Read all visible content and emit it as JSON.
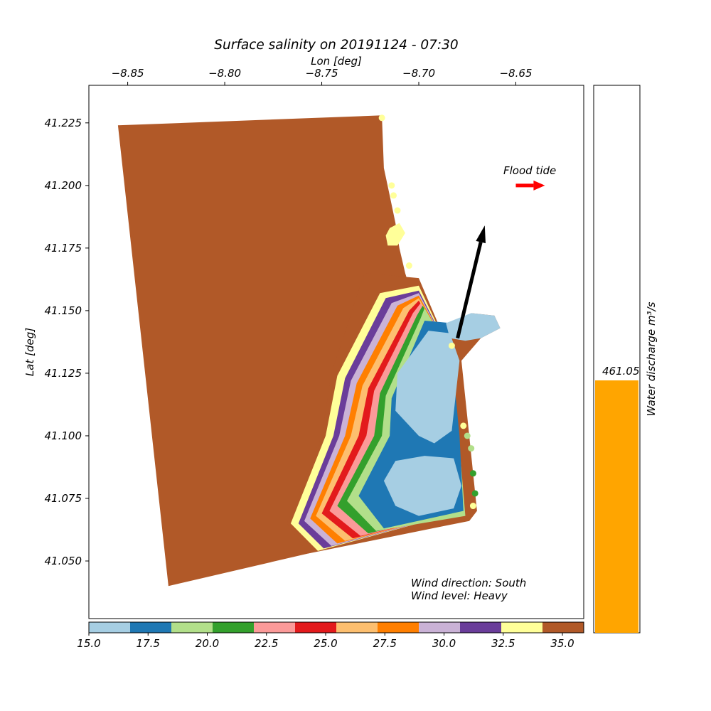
{
  "chart_data": [
    {
      "type": "scatter",
      "title": "Surface salinity on 20191124 - 07:30",
      "xlabel": "Lon [deg]",
      "ylabel": "Lat [deg]",
      "xlim": [
        -8.87,
        -8.615
      ],
      "ylim": [
        41.027,
        41.24
      ],
      "x_axis_position": "top",
      "x_ticks": [
        -8.85,
        -8.8,
        -8.75,
        -8.7,
        -8.65
      ],
      "x_tick_labels": [
        "−8.85",
        "−8.80",
        "−8.75",
        "−8.70",
        "−8.65"
      ],
      "y_ticks": [
        41.225,
        41.2,
        41.175,
        41.15,
        41.125,
        41.1,
        41.075,
        41.05
      ],
      "y_tick_labels": [
        "41.225",
        "41.200",
        "41.175",
        "41.150",
        "41.125",
        "41.100",
        "41.075",
        "41.050"
      ],
      "grid": false,
      "annotations": {
        "flood_tide_label": "Flood tide",
        "wind_direction": "Wind direction: South",
        "wind_level": "Wind level: Heavy"
      },
      "colorbar": {
        "range": [
          15.0,
          35.9
        ],
        "tick_values": [
          15.0,
          17.5,
          20.0,
          22.5,
          25.0,
          27.5,
          30.0,
          32.5,
          35.0
        ],
        "tick_labels": [
          "15.0",
          "17.5",
          "20.0",
          "22.5",
          "25.0",
          "27.5",
          "30.0",
          "32.5",
          "35.0"
        ],
        "colors": [
          "#a6cee3",
          "#1f78b4",
          "#b2df8a",
          "#33a02c",
          "#fb9a99",
          "#e31a1c",
          "#fdbf6f",
          "#ff7f00",
          "#cab2d6",
          "#6a3d9a",
          "#ffff99",
          "#b15928"
        ]
      },
      "field": {
        "domain_outline": [
          [
            -8.855,
            41.224
          ],
          [
            -8.719,
            41.228
          ],
          [
            -8.718,
            41.207
          ],
          [
            -8.715,
            41.196
          ],
          [
            -8.712,
            41.185
          ],
          [
            -8.71,
            41.175
          ],
          [
            -8.707,
            41.165
          ],
          [
            -8.703,
            41.155
          ],
          [
            -8.698,
            41.148
          ],
          [
            -8.695,
            41.142
          ],
          [
            -8.684,
            41.141
          ],
          [
            -8.673,
            41.149
          ],
          [
            -8.661,
            41.148
          ],
          [
            -8.658,
            41.143
          ],
          [
            -8.668,
            41.139
          ],
          [
            -8.678,
            41.13
          ],
          [
            -8.676,
            41.115
          ],
          [
            -8.674,
            41.1
          ],
          [
            -8.672,
            41.085
          ],
          [
            -8.67,
            41.07
          ],
          [
            -8.674,
            41.066
          ],
          [
            -8.757,
            41.053
          ],
          [
            -8.829,
            41.04
          ]
        ],
        "plume_bands": [
          {
            "value": 35.5,
            "color": "#b15928",
            "outline": [
              [
                -8.728,
                41.165
              ],
              [
                -8.7,
                41.163
              ],
              [
                -8.683,
                41.132
              ],
              [
                -8.677,
                41.07
              ],
              [
                -8.757,
                41.053
              ],
              [
                -8.768,
                41.065
              ],
              [
                -8.75,
                41.1
              ],
              [
                -8.745,
                41.125
              ],
              [
                -8.728,
                41.165
              ]
            ]
          },
          {
            "value": 33.5,
            "color": "#ffff99",
            "outline": [
              [
                -8.72,
                41.157
              ],
              [
                -8.7,
                41.16
              ],
              [
                -8.683,
                41.132
              ],
              [
                -8.677,
                41.07
              ],
              [
                -8.752,
                41.054
              ],
              [
                -8.766,
                41.065
              ],
              [
                -8.748,
                41.1
              ],
              [
                -8.742,
                41.124
              ],
              [
                -8.72,
                41.157
              ]
            ]
          },
          {
            "value": 31.7,
            "color": "#6a3d9a",
            "outline": [
              [
                -8.717,
                41.155
              ],
              [
                -8.7,
                41.158
              ],
              [
                -8.683,
                41.132
              ],
              [
                -8.677,
                41.07
              ],
              [
                -8.749,
                41.055
              ],
              [
                -8.762,
                41.065
              ],
              [
                -8.744,
                41.1
              ],
              [
                -8.738,
                41.123
              ],
              [
                -8.717,
                41.155
              ]
            ]
          },
          {
            "value": 29.9,
            "color": "#cab2d6",
            "outline": [
              [
                -8.714,
                41.153
              ],
              [
                -8.7,
                41.157
              ],
              [
                -8.683,
                41.132
              ],
              [
                -8.677,
                41.07
              ],
              [
                -8.745,
                41.056
              ],
              [
                -8.759,
                41.066
              ],
              [
                -8.741,
                41.1
              ],
              [
                -8.735,
                41.122
              ],
              [
                -8.714,
                41.153
              ]
            ]
          },
          {
            "value": 28.2,
            "color": "#ff7f00",
            "outline": [
              [
                -8.711,
                41.152
              ],
              [
                -8.7,
                41.156
              ],
              [
                -8.683,
                41.132
              ],
              [
                -8.677,
                41.07
              ],
              [
                -8.742,
                41.057
              ],
              [
                -8.756,
                41.067
              ],
              [
                -8.738,
                41.1
              ],
              [
                -8.732,
                41.121
              ],
              [
                -8.711,
                41.152
              ]
            ]
          },
          {
            "value": 26.4,
            "color": "#fdbf6f",
            "outline": [
              [
                -8.708,
                41.151
              ],
              [
                -8.7,
                41.155
              ],
              [
                -8.683,
                41.132
              ],
              [
                -8.677,
                41.07
              ],
              [
                -8.738,
                41.058
              ],
              [
                -8.753,
                41.068
              ],
              [
                -8.735,
                41.1
              ],
              [
                -8.729,
                41.12
              ],
              [
                -8.708,
                41.151
              ]
            ]
          },
          {
            "value": 24.6,
            "color": "#e31a1c",
            "outline": [
              [
                -8.705,
                41.15
              ],
              [
                -8.7,
                41.154
              ],
              [
                -8.683,
                41.132
              ],
              [
                -8.677,
                41.07
              ],
              [
                -8.734,
                41.059
              ],
              [
                -8.75,
                41.069
              ],
              [
                -8.731,
                41.1
              ],
              [
                -8.726,
                41.119
              ],
              [
                -8.705,
                41.15
              ]
            ]
          },
          {
            "value": 22.9,
            "color": "#fb9a99",
            "outline": [
              [
                -8.703,
                41.149
              ],
              [
                -8.699,
                41.153
              ],
              [
                -8.683,
                41.132
              ],
              [
                -8.677,
                41.07
              ],
              [
                -8.73,
                41.06
              ],
              [
                -8.746,
                41.07
              ],
              [
                -8.727,
                41.1
              ],
              [
                -8.723,
                41.118
              ],
              [
                -8.703,
                41.149
              ]
            ]
          },
          {
            "value": 21.1,
            "color": "#33a02c",
            "outline": [
              [
                -8.701,
                41.148
              ],
              [
                -8.698,
                41.152
              ],
              [
                -8.683,
                41.132
              ],
              [
                -8.677,
                41.07
              ],
              [
                -8.726,
                41.061
              ],
              [
                -8.742,
                41.072
              ],
              [
                -8.723,
                41.1
              ],
              [
                -8.72,
                41.117
              ],
              [
                -8.701,
                41.148
              ]
            ]
          },
          {
            "value": 19.4,
            "color": "#b2df8a",
            "outline": [
              [
                -8.699,
                41.147
              ],
              [
                -8.697,
                41.151
              ],
              [
                -8.683,
                41.132
              ],
              [
                -8.676,
                41.068
              ],
              [
                -8.722,
                41.062
              ],
              [
                -8.737,
                41.074
              ],
              [
                -8.719,
                41.1
              ],
              [
                -8.717,
                41.116
              ],
              [
                -8.699,
                41.147
              ]
            ]
          },
          {
            "value": 17.6,
            "color": "#1f78b4",
            "outline": [
              [
                -8.697,
                41.146
              ],
              [
                -8.683,
                41.145
              ],
              [
                -8.683,
                41.132
              ],
              [
                -8.679,
                41.1
              ],
              [
                -8.677,
                41.07
              ],
              [
                -8.718,
                41.063
              ],
              [
                -8.731,
                41.076
              ],
              [
                -8.715,
                41.1
              ],
              [
                -8.714,
                41.115
              ],
              [
                -8.697,
                41.146
              ]
            ]
          },
          {
            "value": 15.9,
            "color": "#a6cee3",
            "outline": [
              [
                -8.695,
                41.142
              ],
              [
                -8.684,
                41.141
              ],
              [
                -8.679,
                41.13
              ],
              [
                -8.683,
                41.102
              ],
              [
                -8.692,
                41.097
              ],
              [
                -8.7,
                41.1
              ],
              [
                -8.712,
                41.11
              ],
              [
                -8.711,
                41.125
              ],
              [
                -8.695,
                41.142
              ]
            ]
          },
          {
            "value": 15.9,
            "color": "#a6cee3",
            "outline": [
              [
                -8.697,
                41.092
              ],
              [
                -8.682,
                41.091
              ],
              [
                -8.678,
                41.08
              ],
              [
                -8.682,
                41.071
              ],
              [
                -8.7,
                41.068
              ],
              [
                -8.712,
                41.072
              ],
              [
                -8.718,
                41.082
              ],
              [
                -8.712,
                41.09
              ],
              [
                -8.697,
                41.092
              ]
            ]
          },
          {
            "value": 15.9,
            "color": "#a6cee3",
            "outline": [
              [
                -8.686,
                41.145
              ],
              [
                -8.673,
                41.149
              ],
              [
                -8.661,
                41.148
              ],
              [
                -8.658,
                41.143
              ],
              [
                -8.668,
                41.139
              ],
              [
                -8.676,
                41.138
              ],
              [
                -8.684,
                41.139
              ]
            ]
          },
          {
            "value": 33.5,
            "color": "#ffff99",
            "outline": [
              [
                -8.715,
                41.183
              ],
              [
                -8.71,
                41.185
              ],
              [
                -8.707,
                41.181
              ],
              [
                -8.711,
                41.176
              ],
              [
                -8.716,
                41.176
              ],
              [
                -8.717,
                41.18
              ]
            ]
          }
        ],
        "coast_points": [
          {
            "lon": -8.719,
            "lat": 41.227,
            "value": 33.5
          },
          {
            "lon": -8.714,
            "lat": 41.2,
            "value": 33.5
          },
          {
            "lon": -8.713,
            "lat": 41.196,
            "value": 33.5
          },
          {
            "lon": -8.711,
            "lat": 41.19,
            "value": 33.5
          },
          {
            "lon": -8.705,
            "lat": 41.168,
            "value": 33.5
          },
          {
            "lon": -8.683,
            "lat": 41.136,
            "value": 33.5
          },
          {
            "lon": -8.677,
            "lat": 41.104,
            "value": 33.5
          },
          {
            "lon": -8.675,
            "lat": 41.1,
            "value": 19.4
          },
          {
            "lon": -8.673,
            "lat": 41.095,
            "value": 19.4
          },
          {
            "lon": -8.672,
            "lat": 41.085,
            "value": 21.1
          },
          {
            "lon": -8.671,
            "lat": 41.077,
            "value": 21.1
          },
          {
            "lon": -8.672,
            "lat": 41.072,
            "value": 33.5
          }
        ]
      },
      "current_vector": {
        "from": [
          -8.68,
          41.139
        ],
        "to": [
          -8.666,
          41.184
        ]
      },
      "flood_tide_arrow": {
        "from": [
          -8.65,
          41.2
        ],
        "to": [
          -8.635,
          41.2
        ]
      }
    },
    {
      "type": "bar",
      "ylabel": "Water discharge m³/s",
      "values": [
        461.05
      ],
      "value_labels": [
        "461.05"
      ],
      "ylim": [
        0,
        1000
      ],
      "color": "#ffa500"
    }
  ]
}
